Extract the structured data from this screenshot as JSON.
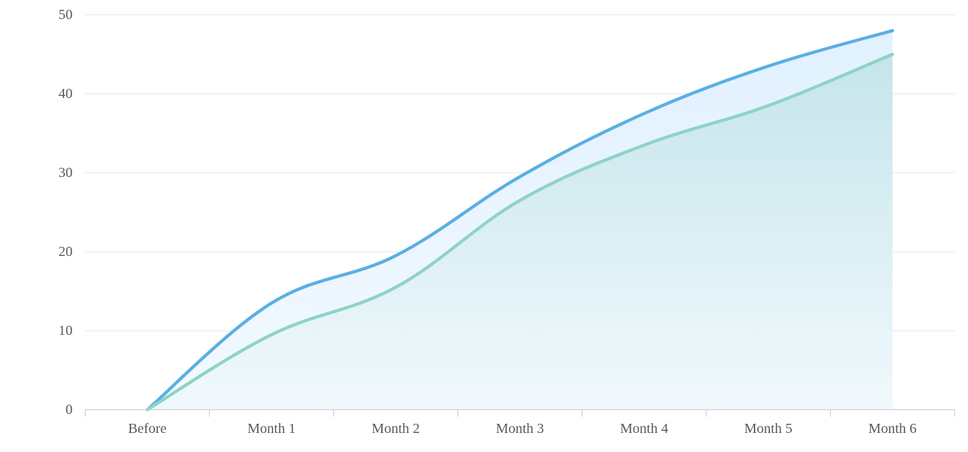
{
  "chart_data": {
    "type": "area",
    "categories": [
      "Before",
      "Month 1",
      "Month 2",
      "Month 3",
      "Month 4",
      "Month 5",
      "Month 6"
    ],
    "series": [
      {
        "values": [
          0,
          13.5,
          19.5,
          29.5,
          37.5,
          43.5,
          48
        ],
        "color": "#5aafe3",
        "fill": "#dcefff"
      },
      {
        "values": [
          0,
          9.5,
          15.5,
          26.5,
          33.5,
          38.5,
          45
        ],
        "color": "#8fd3c6",
        "fill": "#c9e9ee"
      }
    ],
    "ylim": [
      0,
      50
    ],
    "yticks": [
      0,
      10,
      20,
      30,
      40,
      50
    ],
    "grid": true,
    "legend": "none",
    "title": "",
    "xlabel": "",
    "ylabel": ""
  }
}
